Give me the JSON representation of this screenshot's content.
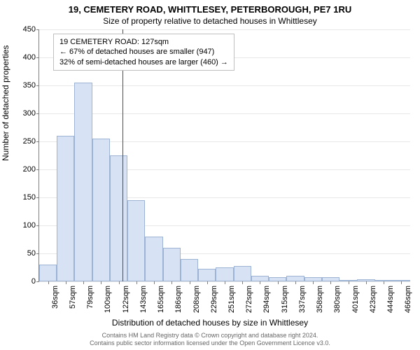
{
  "title_main": "19, CEMETERY ROAD, WHITTLESEY, PETERBOROUGH, PE7 1RU",
  "title_sub": "Size of property relative to detached houses in Whittlesey",
  "y_label": "Number of detached properties",
  "x_label": "Distribution of detached houses by size in Whittlesey",
  "footer_line1": "Contains HM Land Registry data © Crown copyright and database right 2024.",
  "footer_line2": "Contains public sector information licensed under the Open Government Licence v3.0.",
  "chart": {
    "type": "histogram",
    "ylim": [
      0,
      450
    ],
    "ytick_step": 50,
    "bar_fill": "#d7e3f4",
    "bar_stroke": "#9db3d4",
    "grid_color": "#e8e8e8",
    "axis_color": "#808080",
    "background_color": "#ffffff",
    "marker_color": "#ff0000",
    "marker_value": 127,
    "title_fontsize": 13,
    "label_fontsize": 12,
    "tick_fontsize": 11,
    "x_ticks": [
      36,
      57,
      79,
      100,
      122,
      143,
      165,
      186,
      208,
      229,
      251,
      272,
      294,
      315,
      337,
      358,
      380,
      401,
      423,
      444,
      466
    ],
    "x_tick_suffix": "sqm",
    "values": [
      30,
      260,
      355,
      255,
      225,
      145,
      80,
      60,
      40,
      22,
      25,
      28,
      10,
      8,
      10,
      8,
      8,
      3,
      4,
      3,
      3
    ]
  },
  "legend": {
    "line1": "19 CEMETERY ROAD: 127sqm",
    "line2": "← 67% of detached houses are smaller (947)",
    "line3": "32% of semi-detached houses are larger (460) →"
  }
}
